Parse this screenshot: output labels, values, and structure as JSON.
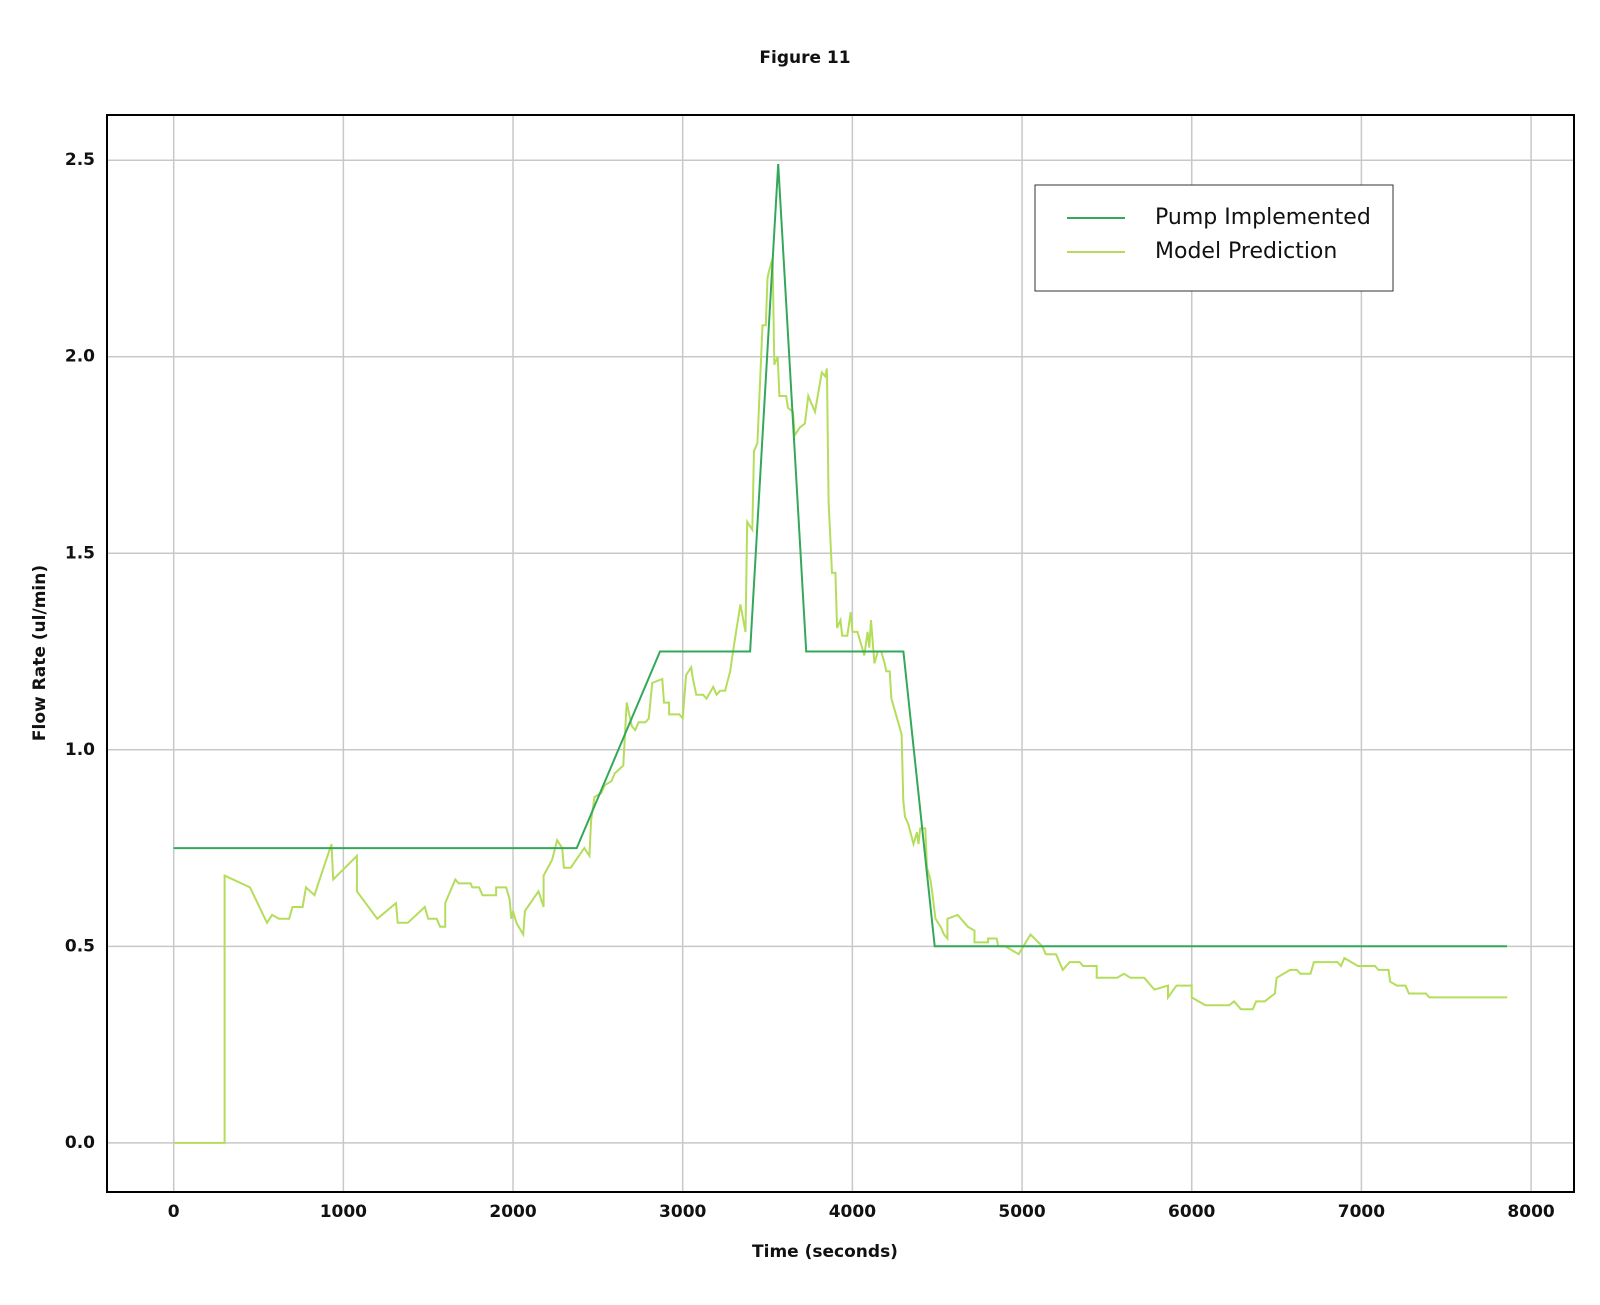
{
  "chart_data": {
    "type": "line",
    "title": "Figure 11",
    "xlabel": "Time (seconds)",
    "ylabel": "Flow Rate (ul/min)",
    "xlim": [
      -393,
      8253
    ],
    "ylim": [
      -0.125,
      2.615
    ],
    "xticks": [
      0,
      1000,
      2000,
      3000,
      4000,
      5000,
      6000,
      7000,
      8000
    ],
    "yticks": [
      {
        "value": 0,
        "label": "0.0"
      },
      0.5,
      {
        "value": 1,
        "label": "1.0"
      },
      1.5,
      {
        "value": 2,
        "label": "2.0"
      },
      2.5
    ],
    "grid": true,
    "legend": "upper right",
    "series": [
      {
        "name": "Pump Implemented",
        "color": "#34a85a",
        "x": [
          0,
          2375,
          2866,
          3397,
          3563,
          3728,
          4301,
          4485,
          7858
        ],
        "values": [
          0.75,
          0.75,
          1.25,
          1.25,
          2.49,
          1.25,
          1.25,
          0.5,
          0.5
        ]
      },
      {
        "name": "Model Prediction",
        "color": "#b5dd5c",
        "x": [
          0,
          300,
          300,
          450,
          550,
          580,
          620,
          680,
          700,
          760,
          780,
          830,
          860,
          930,
          940,
          1080,
          1080,
          1200,
          1310,
          1320,
          1380,
          1480,
          1500,
          1550,
          1570,
          1600,
          1600,
          1660,
          1680,
          1750,
          1760,
          1800,
          1820,
          1900,
          1900,
          1960,
          1980,
          1990,
          2000,
          2020,
          2060,
          2070,
          2150,
          2180,
          2180,
          2230,
          2260,
          2290,
          2300,
          2340,
          2420,
          2450,
          2460,
          2480,
          2520,
          2540,
          2580,
          2600,
          2650,
          2670,
          2700,
          2720,
          2740,
          2780,
          2800,
          2820,
          2880,
          2890,
          2920,
          2920,
          2980,
          3000,
          3020,
          3050,
          3060,
          3080,
          3120,
          3140,
          3180,
          3200,
          3220,
          3250,
          3280,
          3300,
          3340,
          3370,
          3380,
          3410,
          3420,
          3440,
          3470,
          3490,
          3500,
          3510,
          3530,
          3540,
          3560,
          3570,
          3610,
          3620,
          3650,
          3660,
          3690,
          3720,
          3740,
          3780,
          3820,
          3840,
          3850,
          3860,
          3880,
          3900,
          3910,
          3930,
          3940,
          3970,
          3990,
          4000,
          4030,
          4050,
          4070,
          4090,
          4100,
          4110,
          4130,
          4150,
          4170,
          4190,
          4200,
          4220,
          4230,
          4250,
          4270,
          4290,
          4300,
          4310,
          4330,
          4360,
          4380,
          4390,
          4400,
          4430,
          4440,
          4460,
          4470,
          4490,
          4520,
          4540,
          4560,
          4560,
          4620,
          4680,
          4720,
          4720,
          4800,
          4800,
          4850,
          4860,
          4900,
          4980,
          5050,
          5120,
          5140,
          5200,
          5240,
          5280,
          5340,
          5360,
          5440,
          5440,
          5560,
          5600,
          5640,
          5720,
          5780,
          5860,
          5860,
          5910,
          6000,
          6000,
          6080,
          6140,
          6220,
          6250,
          6290,
          6360,
          6380,
          6430,
          6490,
          6500,
          6580,
          6620,
          6640,
          6700,
          6720,
          6860,
          6880,
          6900,
          6980,
          7080,
          7100,
          7160,
          7170,
          7210,
          7260,
          7280,
          7380,
          7400,
          7860
        ],
        "values": [
          0,
          0,
          0.68,
          0.65,
          0.56,
          0.58,
          0.57,
          0.57,
          0.6,
          0.6,
          0.65,
          0.63,
          0.67,
          0.76,
          0.67,
          0.73,
          0.64,
          0.57,
          0.61,
          0.56,
          0.56,
          0.6,
          0.57,
          0.57,
          0.55,
          0.55,
          0.61,
          0.67,
          0.66,
          0.66,
          0.65,
          0.65,
          0.63,
          0.63,
          0.65,
          0.65,
          0.62,
          0.57,
          0.59,
          0.56,
          0.53,
          0.59,
          0.64,
          0.6,
          0.68,
          0.72,
          0.77,
          0.75,
          0.7,
          0.7,
          0.75,
          0.73,
          0.82,
          0.88,
          0.89,
          0.91,
          0.92,
          0.94,
          0.96,
          1.12,
          1.06,
          1.05,
          1.07,
          1.07,
          1.08,
          1.17,
          1.18,
          1.12,
          1.12,
          1.09,
          1.09,
          1.08,
          1.19,
          1.21,
          1.18,
          1.14,
          1.14,
          1.13,
          1.16,
          1.14,
          1.15,
          1.15,
          1.2,
          1.26,
          1.37,
          1.3,
          1.58,
          1.56,
          1.76,
          1.78,
          2.08,
          2.08,
          2.2,
          2.22,
          2.25,
          1.98,
          2.0,
          1.9,
          1.9,
          1.87,
          1.86,
          1.8,
          1.82,
          1.83,
          1.9,
          1.86,
          1.96,
          1.95,
          1.97,
          1.63,
          1.45,
          1.45,
          1.31,
          1.33,
          1.29,
          1.29,
          1.35,
          1.3,
          1.3,
          1.27,
          1.24,
          1.3,
          1.26,
          1.33,
          1.22,
          1.25,
          1.25,
          1.22,
          1.2,
          1.2,
          1.13,
          1.1,
          1.07,
          1.04,
          0.87,
          0.83,
          0.81,
          0.76,
          0.79,
          0.76,
          0.8,
          0.8,
          0.7,
          0.67,
          0.64,
          0.57,
          0.55,
          0.53,
          0.52,
          0.57,
          0.58,
          0.55,
          0.54,
          0.51,
          0.51,
          0.52,
          0.52,
          0.5,
          0.5,
          0.48,
          0.53,
          0.5,
          0.48,
          0.48,
          0.44,
          0.46,
          0.46,
          0.45,
          0.45,
          0.42,
          0.42,
          0.43,
          0.42,
          0.42,
          0.39,
          0.4,
          0.37,
          0.4,
          0.4,
          0.37,
          0.35,
          0.35,
          0.35,
          0.36,
          0.34,
          0.34,
          0.36,
          0.36,
          0.38,
          0.42,
          0.44,
          0.44,
          0.43,
          0.43,
          0.46,
          0.46,
          0.45,
          0.47,
          0.45,
          0.45,
          0.44,
          0.44,
          0.41,
          0.4,
          0.4,
          0.38,
          0.38,
          0.37,
          0.37
        ]
      }
    ]
  }
}
